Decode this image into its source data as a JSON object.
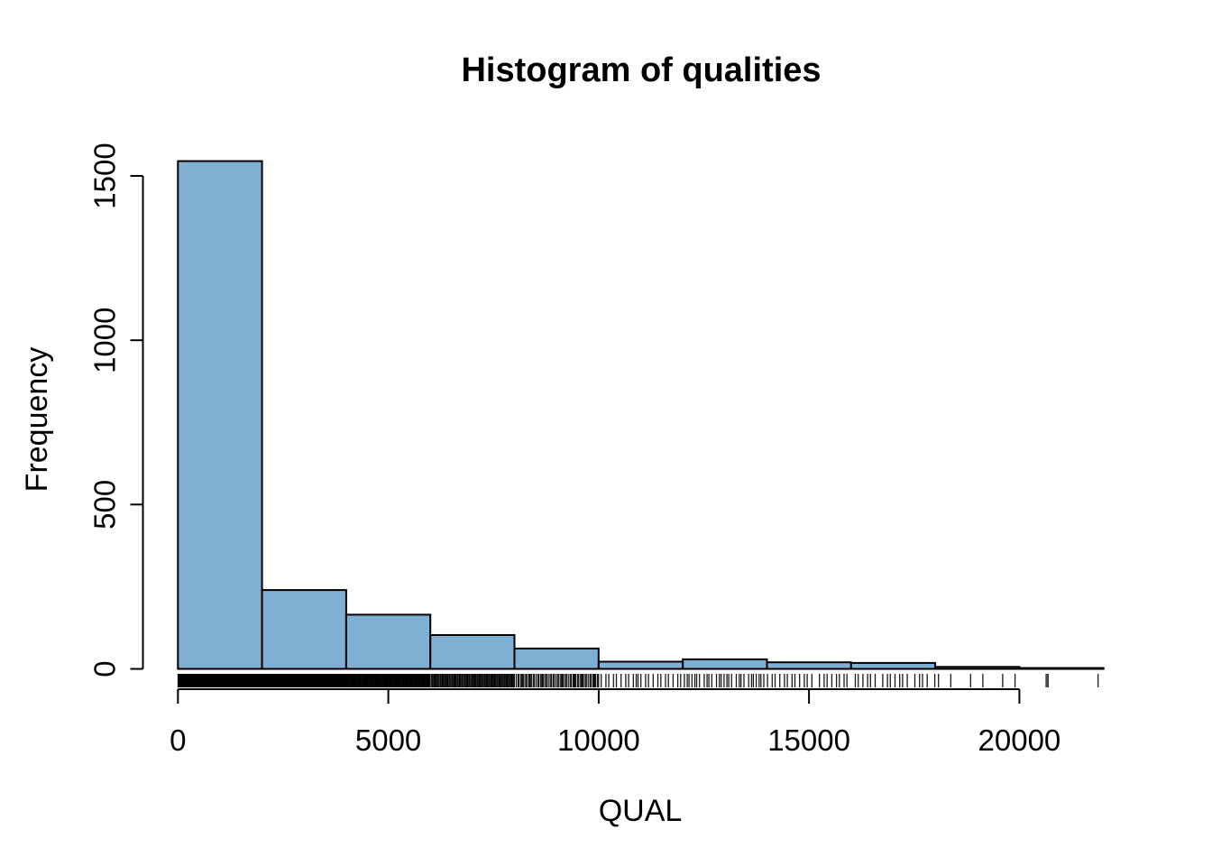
{
  "page": {
    "background_color": "#ffffff"
  },
  "chart_data": {
    "type": "histogram",
    "title": "Histogram of qualities",
    "xlabel": "QUAL",
    "ylabel": "Frequency",
    "bin_width": 2000,
    "breaks": [
      0,
      2000,
      4000,
      6000,
      8000,
      10000,
      12000,
      14000,
      16000,
      18000,
      20000,
      22000
    ],
    "values": [
      1545,
      240,
      165,
      103,
      62,
      22,
      29,
      20,
      18,
      6,
      2
    ],
    "xlim": [
      0,
      22000
    ],
    "ylim": [
      0,
      1545
    ],
    "x_ticks": [
      0,
      5000,
      10000,
      15000,
      20000
    ],
    "x_tick_labels": [
      "0",
      "5000",
      "10000",
      "15000",
      "20000"
    ],
    "y_ticks": [
      0,
      500,
      1000,
      1500
    ],
    "y_tick_labels": [
      "0",
      "500",
      "1000",
      "1500"
    ],
    "y_tick_label_rotation_deg": -90,
    "grid": "off",
    "legend": "none",
    "bar_fill_color": "#7FB0D4",
    "bar_border_color": "#000000",
    "rug": {
      "present": true,
      "tick_color": "#000000",
      "densities_follow_bin_counts": true,
      "extra_points": [
        20678
      ]
    }
  }
}
